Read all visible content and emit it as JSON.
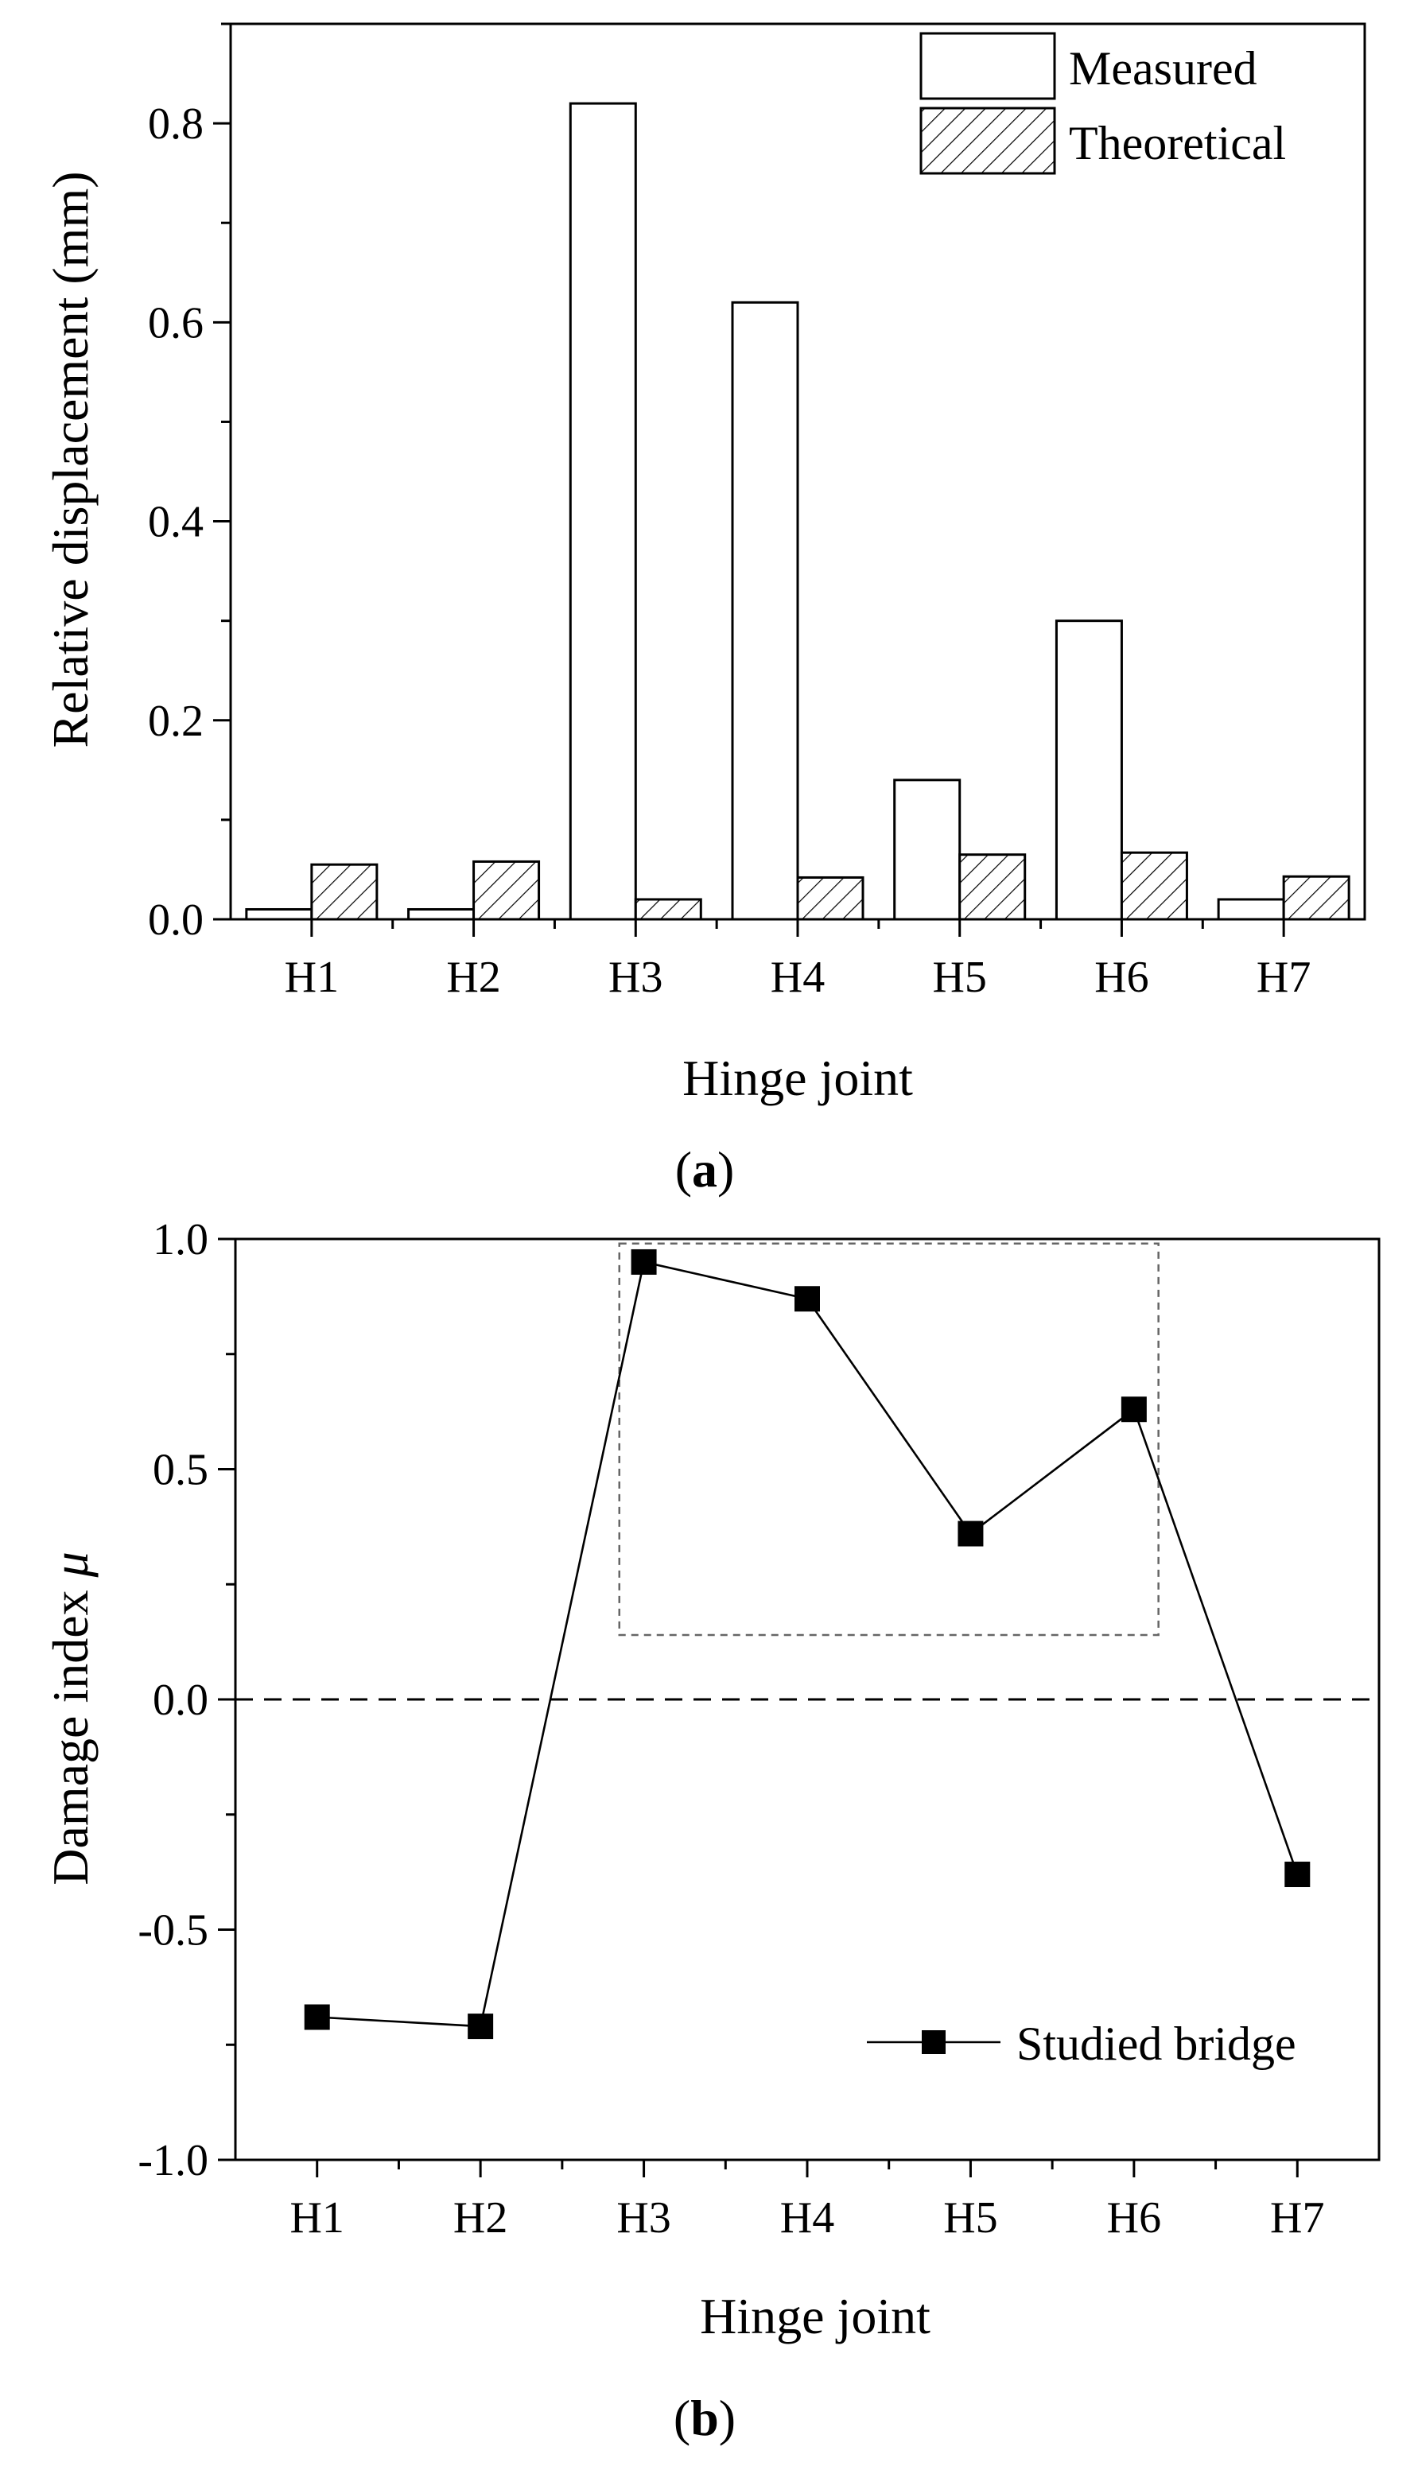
{
  "chart_data": [
    {
      "type": "bar",
      "panel_label": "(a)",
      "panel_letter": "a",
      "xlabel": "Hinge joint",
      "ylabel": "Relative displacement (mm)",
      "categories": [
        "H1",
        "H2",
        "H3",
        "H4",
        "H5",
        "H6",
        "H7"
      ],
      "ylim": [
        0,
        0.9
      ],
      "yticks": [
        0.0,
        0.2,
        0.4,
        0.6,
        0.8
      ],
      "ytick_labels": [
        "0.0",
        "0.2",
        "0.4",
        "0.6",
        "0.8"
      ],
      "legend_position": "top-right",
      "series": [
        {
          "name": "Measured",
          "fill": "#ffffff",
          "values": [
            0.01,
            0.01,
            0.82,
            0.62,
            0.14,
            0.3,
            0.02
          ]
        },
        {
          "name": "Theoretical",
          "fill": "hatch",
          "values": [
            0.055,
            0.058,
            0.02,
            0.042,
            0.065,
            0.067,
            0.043
          ]
        }
      ]
    },
    {
      "type": "line",
      "panel_label": "(b)",
      "panel_letter": "b",
      "xlabel": "Hinge joint",
      "ylabel": "Damage index",
      "ylabel_symbol": "μ",
      "categories": [
        "H1",
        "H2",
        "H3",
        "H4",
        "H5",
        "H6",
        "H7"
      ],
      "ylim": [
        -1.0,
        1.0
      ],
      "yticks": [
        -1.0,
        -0.5,
        0.0,
        0.5,
        1.0
      ],
      "ytick_labels": [
        "-1.0",
        "-0.5",
        "0.0",
        "0.5",
        "1.0"
      ],
      "reference_line_y": 0.0,
      "highlight_box": {
        "x_from": "H3",
        "x_to": "H6",
        "y_range": [
          0.14,
          0.99
        ]
      },
      "legend_position": "bottom-right",
      "series": [
        {
          "name": "Studied bridge",
          "marker": "square",
          "color": "#000000",
          "values": [
            -0.69,
            -0.71,
            0.95,
            0.87,
            0.36,
            0.63,
            -0.38
          ]
        }
      ]
    }
  ]
}
